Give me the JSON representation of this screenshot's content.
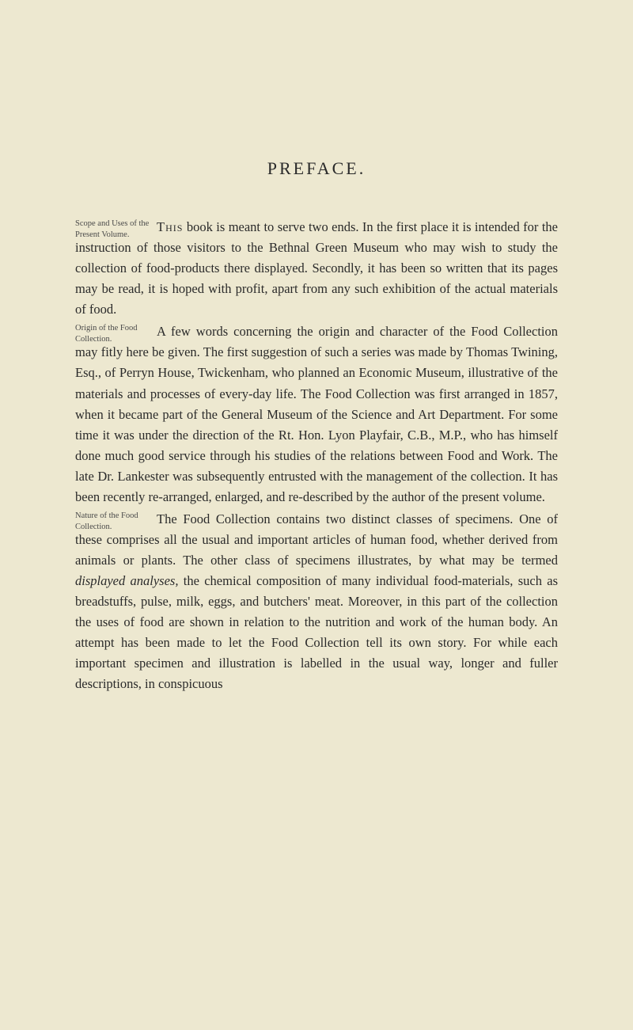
{
  "title": "PREFACE.",
  "paragraphs": [
    {
      "marginNote": "Scope and Uses of the Present Volume.",
      "firstWord": "This",
      "text": " book is meant to serve two ends. In the first place it is intended for the instruction of those visitors to the Bethnal Green Museum who may wish to study the collection of food-products there displayed. Secondly, it has been so written that its pages may be read, it is hoped with profit, apart from any such exhibition of the actual materials of food."
    },
    {
      "marginNote": "Origin of the Food Collection.",
      "text": "A few words concerning the origin and character of the Food Collection may fitly here be given. The first suggestion of such a series was made by Thomas Twining, Esq., of Perryn House, Twickenham, who planned an Economic Museum, illustrative of the materials and processes of every-day life. The Food Collection was first arranged in 1857, when it became part of the General Museum of the Science and Art Department. For some time it was under the direction of the Rt. Hon. Lyon Playfair, C.B., M.P., who has himself done much good service through his studies of the relations between Food and Work. The late Dr. Lankester was subsequently entrusted with the management of the collection. It has been recently re-arranged, enlarged, and re-described by the author of the present volume."
    },
    {
      "marginNote": "Nature of the Food Collection.",
      "textBeforeItalic": "The Food Collection contains two distinct classes of specimens. One of these comprises all the usual and important articles of human food, whether derived from animals or plants. The other class of specimens illustrates, by what may be termed ",
      "italicText": "displayed analyses,",
      "textAfterItalic": " the chemical composition of many individual food-materials, such as breadstuffs, pulse, milk, eggs, and butchers' meat. Moreover, in this part of the collection the uses of food are shown in relation to the nutrition and work of the human body. An attempt has been made to let the Food Collection tell its own story. For while each important specimen and illustration is labelled in the usual way, longer and fuller descriptions, in conspicuous"
    }
  ]
}
